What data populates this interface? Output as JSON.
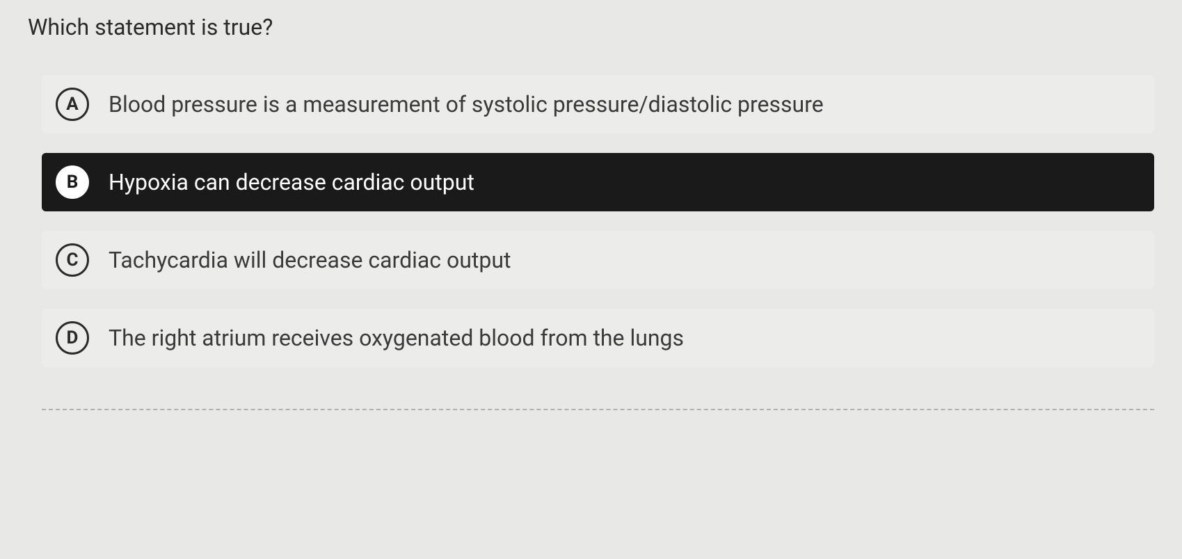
{
  "question": {
    "text": "Which statement is true?"
  },
  "options": [
    {
      "letter": "A",
      "text": "Blood pressure is a measurement of systolic pressure/diastolic pressure",
      "selected": false
    },
    {
      "letter": "B",
      "text": "Hypoxia can decrease cardiac output",
      "selected": true
    },
    {
      "letter": "C",
      "text": "Tachycardia will decrease cardiac output",
      "selected": false
    },
    {
      "letter": "D",
      "text": "The right atrium receives oxygenated blood from the lungs",
      "selected": false
    }
  ],
  "colors": {
    "background": "#e8e8e6",
    "text_primary": "#2a2a2a",
    "text_option": "#3a3a3a",
    "selected_bg": "#1a1a1a",
    "selected_text": "#ffffff",
    "divider": "#b0b0b0"
  }
}
